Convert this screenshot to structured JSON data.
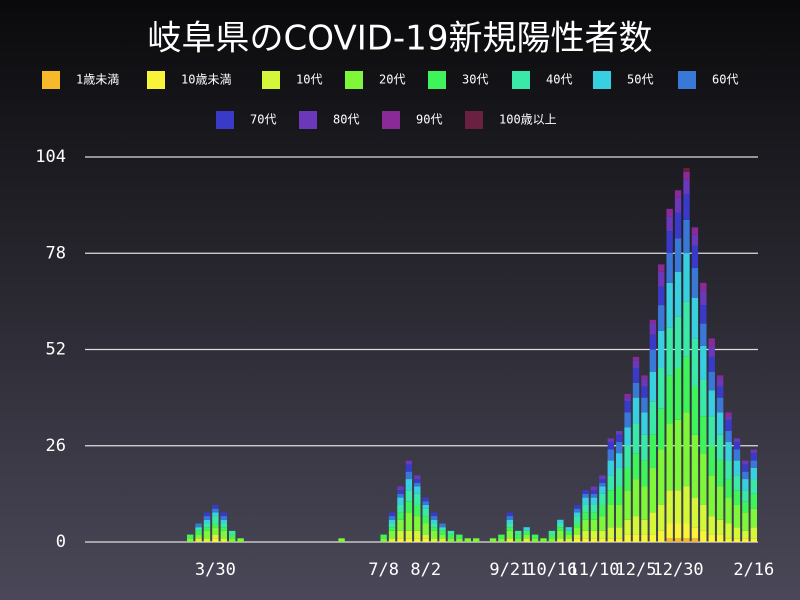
{
  "chart_data": {
    "type": "stacked_bar",
    "title": "岐阜県のCOVID-19新規陽性者数",
    "categories": [
      null,
      null,
      null,
      null,
      null,
      null,
      null,
      null,
      null,
      null,
      null,
      null,
      null,
      null,
      null,
      "3/30",
      null,
      null,
      null,
      null,
      null,
      null,
      null,
      null,
      null,
      null,
      null,
      null,
      null,
      null,
      null,
      null,
      null,
      null,
      null,
      "7/8",
      null,
      null,
      null,
      null,
      "8/2",
      null,
      null,
      null,
      null,
      null,
      null,
      null,
      null,
      null,
      "9/21",
      null,
      null,
      null,
      null,
      "10/16",
      null,
      null,
      null,
      null,
      "11/10",
      null,
      null,
      null,
      null,
      "12/5",
      null,
      null,
      null,
      null,
      "12/30",
      null,
      null,
      null,
      null,
      null,
      null,
      null,
      null,
      "2/16"
    ],
    "ylim": [
      0,
      104
    ],
    "yticks": [
      0,
      26,
      52,
      78,
      104
    ],
    "grid": true,
    "series": [
      {
        "name": "1歳未満",
        "color": "#f7b92a",
        "values": [
          0,
          0,
          0,
          0,
          0,
          0,
          0,
          0,
          0,
          0,
          0,
          0,
          0,
          0,
          0,
          0,
          0,
          0,
          0,
          0,
          0,
          0,
          0,
          0,
          0,
          0,
          0,
          0,
          0,
          0,
          0,
          0,
          0,
          0,
          0,
          0,
          0,
          0,
          0,
          0,
          0,
          0,
          0,
          0,
          0,
          0,
          0,
          0,
          0,
          0,
          0,
          0,
          0,
          0,
          0,
          0,
          0,
          0,
          0,
          0,
          0,
          0,
          0,
          0,
          0,
          0,
          0,
          0,
          0,
          1,
          1,
          1,
          1,
          0,
          0,
          0,
          0,
          0,
          0,
          0
        ]
      },
      {
        "name": "10歳未満",
        "color": "#f9f43a",
        "values": [
          0,
          0,
          0,
          0,
          0,
          0,
          0,
          0,
          0,
          0,
          0,
          0,
          0,
          0,
          0,
          1,
          0,
          0,
          0,
          0,
          0,
          0,
          0,
          0,
          0,
          0,
          0,
          0,
          0,
          0,
          0,
          0,
          0,
          0,
          0,
          0,
          0,
          1,
          1,
          1,
          1,
          0,
          0,
          0,
          0,
          0,
          0,
          0,
          0,
          0,
          0,
          0,
          0,
          0,
          0,
          0,
          0,
          0,
          1,
          1,
          1,
          1,
          1,
          1,
          2,
          2,
          2,
          2,
          3,
          4,
          4,
          4,
          3,
          3,
          2,
          2,
          1,
          1,
          1,
          1
        ]
      },
      {
        "name": "10代",
        "color": "#d5f73a",
        "values": [
          0,
          0,
          0,
          0,
          0,
          0,
          0,
          0,
          0,
          0,
          0,
          0,
          0,
          1,
          1,
          1,
          1,
          0,
          0,
          0,
          0,
          0,
          0,
          0,
          0,
          0,
          0,
          0,
          0,
          0,
          0,
          0,
          0,
          0,
          0,
          0,
          1,
          2,
          2,
          2,
          1,
          1,
          1,
          0,
          0,
          0,
          0,
          0,
          0,
          0,
          1,
          0,
          1,
          0,
          0,
          0,
          1,
          1,
          1,
          2,
          2,
          2,
          3,
          3,
          4,
          5,
          4,
          6,
          7,
          9,
          9,
          10,
          8,
          7,
          5,
          4,
          4,
          3,
          2,
          3
        ]
      },
      {
        "name": "20代",
        "color": "#7ef63a",
        "values": [
          0,
          0,
          0,
          0,
          0,
          0,
          0,
          0,
          0,
          0,
          0,
          0,
          1,
          1,
          2,
          2,
          2,
          1,
          1,
          0,
          0,
          0,
          0,
          0,
          0,
          0,
          0,
          0,
          0,
          0,
          1,
          0,
          0,
          0,
          0,
          1,
          2,
          3,
          5,
          4,
          3,
          2,
          1,
          1,
          1,
          1,
          1,
          0,
          1,
          1,
          2,
          1,
          1,
          1,
          1,
          1,
          2,
          1,
          2,
          3,
          3,
          4,
          6,
          6,
          8,
          10,
          9,
          12,
          15,
          18,
          19,
          20,
          17,
          14,
          11,
          9,
          7,
          6,
          5,
          5
        ]
      },
      {
        "name": "30代",
        "color": "#3ef45a",
        "values": [
          0,
          0,
          0,
          0,
          0,
          0,
          0,
          0,
          0,
          0,
          0,
          0,
          1,
          1,
          1,
          1,
          1,
          1,
          0,
          0,
          0,
          0,
          0,
          0,
          0,
          0,
          0,
          0,
          0,
          0,
          0,
          0,
          0,
          0,
          0,
          1,
          1,
          2,
          3,
          3,
          2,
          1,
          1,
          1,
          1,
          0,
          0,
          0,
          0,
          1,
          1,
          1,
          1,
          1,
          0,
          1,
          1,
          1,
          1,
          2,
          2,
          3,
          4,
          5,
          6,
          7,
          7,
          9,
          11,
          13,
          14,
          15,
          13,
          10,
          8,
          7,
          5,
          4,
          3,
          4
        ]
      },
      {
        "name": "40代",
        "color": "#3ae8a8",
        "values": [
          0,
          0,
          0,
          0,
          0,
          0,
          0,
          0,
          0,
          0,
          0,
          0,
          0,
          1,
          1,
          2,
          1,
          1,
          0,
          0,
          0,
          0,
          0,
          0,
          0,
          0,
          0,
          0,
          0,
          0,
          0,
          0,
          0,
          0,
          0,
          0,
          1,
          2,
          3,
          3,
          2,
          1,
          1,
          1,
          0,
          0,
          0,
          0,
          0,
          0,
          1,
          1,
          0,
          0,
          0,
          1,
          1,
          0,
          2,
          2,
          2,
          3,
          4,
          5,
          6,
          8,
          7,
          9,
          11,
          13,
          14,
          15,
          13,
          10,
          8,
          7,
          5,
          4,
          3,
          4
        ]
      },
      {
        "name": "50代",
        "color": "#38cfe0",
        "values": [
          0,
          0,
          0,
          0,
          0,
          0,
          0,
          0,
          0,
          0,
          0,
          0,
          0,
          0,
          1,
          1,
          1,
          0,
          0,
          0,
          0,
          0,
          0,
          0,
          0,
          0,
          0,
          0,
          0,
          0,
          0,
          0,
          0,
          0,
          0,
          0,
          1,
          2,
          3,
          2,
          1,
          1,
          0,
          0,
          0,
          0,
          0,
          0,
          0,
          0,
          1,
          0,
          1,
          0,
          0,
          0,
          1,
          1,
          1,
          2,
          2,
          2,
          4,
          4,
          5,
          7,
          6,
          8,
          10,
          12,
          12,
          13,
          11,
          9,
          7,
          6,
          5,
          4,
          3,
          3
        ]
      },
      {
        "name": "60代",
        "color": "#3a78d8",
        "values": [
          0,
          0,
          0,
          0,
          0,
          0,
          0,
          0,
          0,
          0,
          0,
          0,
          0,
          1,
          1,
          1,
          1,
          0,
          0,
          0,
          0,
          0,
          0,
          0,
          0,
          0,
          0,
          0,
          0,
          0,
          0,
          0,
          0,
          0,
          0,
          0,
          1,
          1,
          2,
          1,
          1,
          1,
          1,
          0,
          0,
          0,
          0,
          0,
          0,
          0,
          1,
          0,
          0,
          0,
          0,
          0,
          0,
          0,
          1,
          1,
          1,
          1,
          3,
          3,
          4,
          4,
          4,
          6,
          7,
          8,
          9,
          9,
          8,
          6,
          5,
          4,
          3,
          3,
          2,
          2
        ]
      },
      {
        "name": "70代",
        "color": "#3a3ac8",
        "values": [
          0,
          0,
          0,
          0,
          0,
          0,
          0,
          0,
          0,
          0,
          0,
          0,
          0,
          0,
          1,
          1,
          1,
          0,
          0,
          0,
          0,
          0,
          0,
          0,
          0,
          0,
          0,
          0,
          0,
          0,
          0,
          0,
          0,
          0,
          0,
          0,
          1,
          1,
          2,
          1,
          1,
          1,
          0,
          0,
          0,
          0,
          0,
          0,
          0,
          0,
          1,
          0,
          0,
          0,
          0,
          0,
          0,
          0,
          1,
          1,
          1,
          1,
          2,
          2,
          3,
          4,
          3,
          4,
          5,
          6,
          7,
          7,
          6,
          5,
          4,
          3,
          3,
          2,
          2,
          2
        ]
      },
      {
        "name": "80代",
        "color": "#6a38b8",
        "values": [
          0,
          0,
          0,
          0,
          0,
          0,
          0,
          0,
          0,
          0,
          0,
          0,
          0,
          0,
          0,
          0,
          0,
          0,
          0,
          0,
          0,
          0,
          0,
          0,
          0,
          0,
          0,
          0,
          0,
          0,
          0,
          0,
          0,
          0,
          0,
          0,
          0,
          1,
          1,
          1,
          0,
          0,
          0,
          0,
          0,
          0,
          0,
          0,
          0,
          0,
          0,
          0,
          0,
          0,
          0,
          0,
          0,
          0,
          0,
          0,
          1,
          1,
          1,
          1,
          1,
          2,
          2,
          3,
          4,
          4,
          4,
          4,
          3,
          4,
          3,
          2,
          1,
          1,
          1,
          1
        ]
      },
      {
        "name": "90代",
        "color": "#8a2a98",
        "values": [
          0,
          0,
          0,
          0,
          0,
          0,
          0,
          0,
          0,
          0,
          0,
          0,
          0,
          0,
          0,
          0,
          0,
          0,
          0,
          0,
          0,
          0,
          0,
          0,
          0,
          0,
          0,
          0,
          0,
          0,
          0,
          0,
          0,
          0,
          0,
          0,
          0,
          0,
          0,
          0,
          0,
          0,
          0,
          0,
          0,
          0,
          0,
          0,
          0,
          0,
          0,
          0,
          0,
          0,
          0,
          0,
          0,
          0,
          0,
          0,
          0,
          0,
          0,
          0,
          1,
          1,
          1,
          1,
          2,
          2,
          2,
          2,
          2,
          2,
          2,
          1,
          1,
          0,
          0,
          0
        ]
      },
      {
        "name": "100歳以上",
        "color": "#6a2040",
        "values": [
          0,
          0,
          0,
          0,
          0,
          0,
          0,
          0,
          0,
          0,
          0,
          0,
          0,
          0,
          0,
          0,
          0,
          0,
          0,
          0,
          0,
          0,
          0,
          0,
          0,
          0,
          0,
          0,
          0,
          0,
          0,
          0,
          0,
          0,
          0,
          0,
          0,
          0,
          0,
          0,
          0,
          0,
          0,
          0,
          0,
          0,
          0,
          0,
          0,
          0,
          0,
          0,
          0,
          0,
          0,
          0,
          0,
          0,
          0,
          0,
          0,
          0,
          0,
          0,
          0,
          0,
          0,
          0,
          0,
          0,
          0,
          1,
          0,
          0,
          0,
          0,
          0,
          0,
          0,
          0
        ]
      }
    ]
  }
}
